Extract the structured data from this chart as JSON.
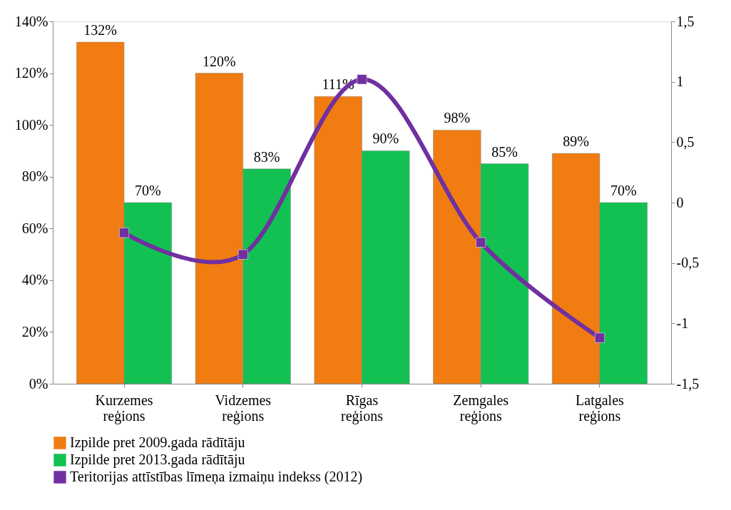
{
  "chart_data": {
    "type": "bar",
    "categories": [
      "Kurzemes reģions",
      "Vidzemes reģions",
      "Rīgas reģions",
      "Zemgales reģions",
      "Latgales reģions"
    ],
    "series": [
      {
        "name": "Izpilde pret 2009.gada rādītāju",
        "color": "#f07c12",
        "values": [
          132,
          120,
          111,
          98,
          89
        ],
        "value_labels": [
          "132%",
          "120%",
          "111%",
          "98%",
          "89%"
        ]
      },
      {
        "name": "Izpilde pret 2013.gada rādītāju",
        "color": "#12c152",
        "values": [
          70,
          83,
          90,
          85,
          70
        ],
        "value_labels": [
          "70%",
          "83%",
          "90%",
          "85%",
          "70%"
        ]
      },
      {
        "name": "Teritorijas attīstības līmeņa izmaiņu indekss (2012)",
        "type": "line",
        "axis": "y2",
        "color": "#7030a0",
        "values": [
          -0.25,
          -0.43,
          1.02,
          -0.33,
          -1.12
        ]
      }
    ],
    "ylim": [
      0,
      140
    ],
    "yticks": [
      {
        "value": 0,
        "label": "0%"
      },
      {
        "value": 20,
        "label": "20%"
      },
      {
        "value": 40,
        "label": "40%"
      },
      {
        "value": 60,
        "label": "60%"
      },
      {
        "value": 80,
        "label": "80%"
      },
      {
        "value": 100,
        "label": "100%"
      },
      {
        "value": 120,
        "label": "120%"
      },
      {
        "value": 140,
        "label": "140%"
      }
    ],
    "y2lim": [
      -1.5,
      1.5
    ],
    "y2ticks": [
      {
        "value": -1.5,
        "label": "-1,5"
      },
      {
        "value": -1,
        "label": "-1"
      },
      {
        "value": -0.5,
        "label": "-0,5"
      },
      {
        "value": 0,
        "label": "0"
      },
      {
        "value": 0.5,
        "label": "0,5"
      },
      {
        "value": 1,
        "label": "1"
      },
      {
        "value": 1.5,
        "label": "1,5"
      }
    ],
    "marker": "square",
    "line_style": "solid",
    "legend": "bottom",
    "grid": false
  }
}
